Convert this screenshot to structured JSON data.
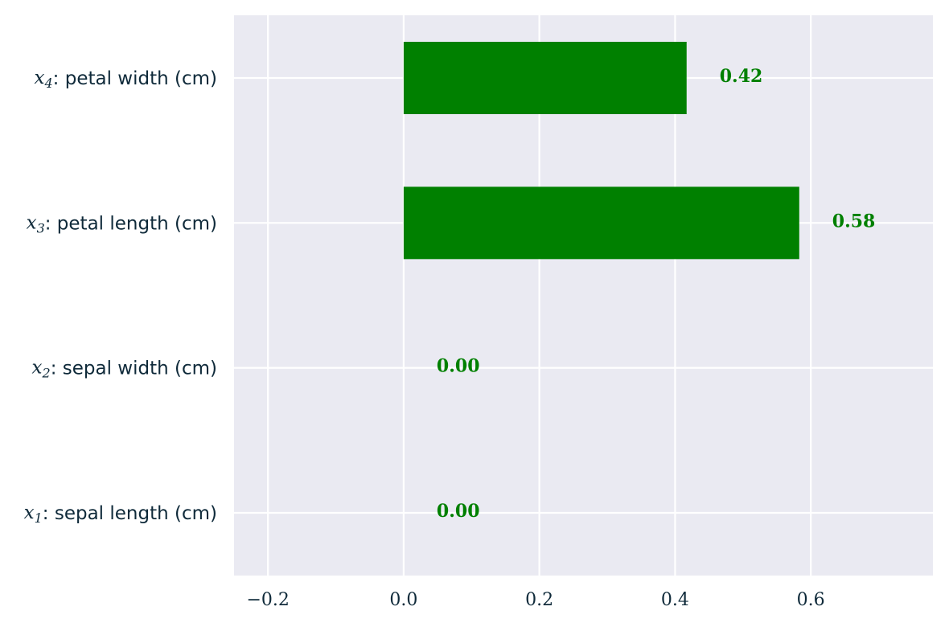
{
  "chart_data": {
    "type": "bar",
    "orientation": "horizontal",
    "categories": [
      {
        "var": "x",
        "sub": "1",
        "text": ": sepal length (cm)"
      },
      {
        "var": "x",
        "sub": "2",
        "text": ": sepal width (cm)"
      },
      {
        "var": "x",
        "sub": "3",
        "text": ": petal length (cm)"
      },
      {
        "var": "x",
        "sub": "4",
        "text": ": petal width (cm)"
      }
    ],
    "values": [
      0.0,
      0.0,
      0.583,
      0.417
    ],
    "value_labels": [
      "0.00",
      "0.00",
      "0.58",
      "0.42"
    ],
    "xticks": [
      -0.2,
      0.0,
      0.2,
      0.4,
      0.6
    ],
    "xtick_labels": [
      "−0.2",
      "0.0",
      "0.2",
      "0.4",
      "0.6"
    ],
    "xlim": [
      -0.25,
      0.78
    ],
    "title": "",
    "xlabel": "",
    "ylabel": "",
    "grid": true,
    "legend": "none",
    "colors": {
      "bar": "#008000",
      "label": "#008000",
      "plot_background": "#eaeaf2",
      "grid": "#ffffff",
      "text": "#0f2a3a"
    }
  }
}
